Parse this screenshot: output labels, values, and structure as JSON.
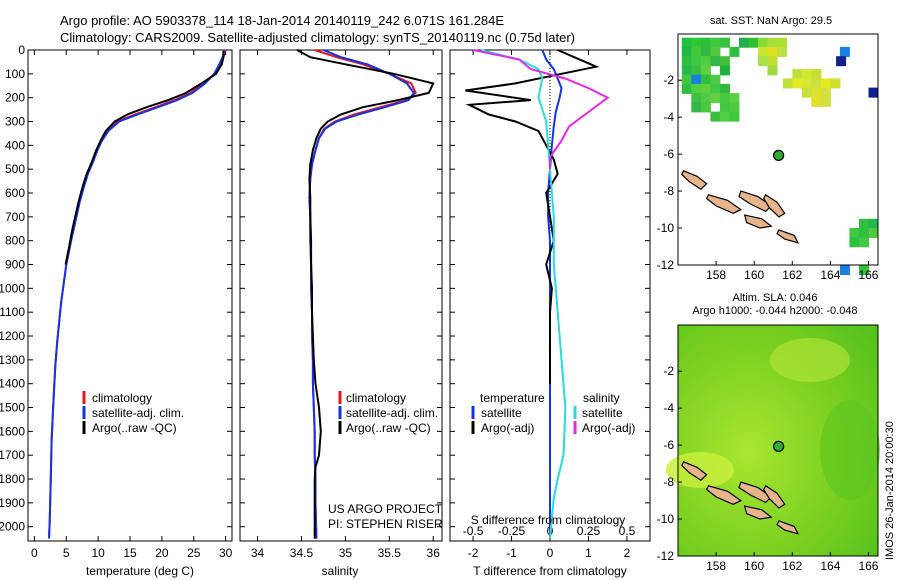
{
  "header": {
    "line1": "Argo profile: AO 5903378_114 18-Jan-2014 20140119_242 6.071S 161.284E",
    "line2": "Climatology: CARS2009. Satellite-adjusted climatology: synTS_20140119.nc (0.75d later)"
  },
  "credits": {
    "line1": "US ARGO PROJECT",
    "line2": "PI: STEPHEN RISER"
  },
  "imos_stamp": "IMOS 26-Jan-2014 20:00:30",
  "colors": {
    "climatology": "#e8141e",
    "satellite": "#1432e6",
    "argo": "#000000",
    "sal_satellite": "#28dcdc",
    "sal_argo": "#e628e6"
  },
  "chart_data": [
    {
      "id": "temperature",
      "type": "line",
      "xlabel": "temperature (deg C)",
      "ylabel": "",
      "xlim": [
        -1,
        31
      ],
      "ylim": [
        2060,
        0
      ],
      "y_reversed": true,
      "xticks": [
        0,
        5,
        10,
        15,
        20,
        25,
        30
      ],
      "xtick_labels": [
        "0",
        "5",
        "10",
        "15",
        "20",
        "25",
        "30"
      ],
      "yticks": [
        0,
        100,
        200,
        300,
        400,
        500,
        600,
        700,
        800,
        900,
        1000,
        1100,
        1200,
        1300,
        1400,
        1500,
        1600,
        1700,
        1800,
        1900,
        2000
      ],
      "ytick_labels": [
        "0",
        "100",
        "200",
        "300",
        "400",
        "500",
        "600",
        "700",
        "800",
        "900",
        "1000",
        "1100",
        "1200",
        "1300",
        "1400",
        "1500",
        "1600",
        "1700",
        "1800",
        "1900",
        "2000"
      ],
      "legend": [
        "climatology",
        "satellite-adj. clim.",
        "Argo(..raw -QC)"
      ],
      "series": [
        {
          "name": "climatology",
          "color": "#e8141e",
          "x": [
            29.9,
            29.7,
            29.2,
            28.3,
            26.5,
            24.5,
            22.0,
            19.0,
            15.8,
            13.0,
            11.4,
            10.5,
            9.8,
            9.1,
            8.3,
            7.6,
            7.0,
            6.5,
            6.0,
            5.6,
            5.0,
            4.6,
            4.2,
            3.9,
            3.6,
            3.3,
            3.1,
            2.9,
            2.7,
            2.6,
            2.5,
            2.4,
            2.3
          ],
          "y": [
            0,
            25,
            60,
            100,
            140,
            180,
            210,
            240,
            270,
            300,
            340,
            380,
            420,
            470,
            520,
            580,
            640,
            700,
            760,
            820,
            900,
            980,
            1060,
            1140,
            1220,
            1320,
            1420,
            1520,
            1640,
            1760,
            1880,
            1980,
            2050
          ]
        },
        {
          "name": "satellite-adj. clim.",
          "color": "#1432e6",
          "x": [
            29.8,
            29.6,
            29.0,
            28.2,
            26.8,
            24.8,
            22.4,
            19.4,
            16.2,
            13.3,
            11.6,
            10.6,
            9.9,
            9.2,
            8.4,
            7.7,
            7.1,
            6.6,
            6.1,
            5.6,
            5.0,
            4.6,
            4.2,
            3.9,
            3.6,
            3.3,
            3.1,
            2.9,
            2.7,
            2.6,
            2.5,
            2.4,
            2.3
          ],
          "y": [
            0,
            25,
            60,
            100,
            140,
            180,
            210,
            240,
            270,
            300,
            340,
            380,
            420,
            470,
            520,
            580,
            640,
            700,
            760,
            820,
            900,
            980,
            1060,
            1140,
            1220,
            1320,
            1420,
            1520,
            1640,
            1760,
            1880,
            1980,
            2050
          ]
        },
        {
          "name": "Argo(..raw -QC)",
          "color": "#000000",
          "x": [
            29.6,
            29.7,
            29.4,
            28.5,
            26.2,
            23.8,
            21.0,
            17.6,
            14.6,
            12.6,
            11.2,
            10.4,
            9.7,
            9.0,
            8.2,
            7.5,
            6.9,
            6.4,
            5.9,
            5.5,
            4.9
          ],
          "y": [
            5,
            25,
            60,
            100,
            140,
            180,
            210,
            240,
            270,
            300,
            340,
            380,
            420,
            470,
            520,
            580,
            640,
            700,
            760,
            820,
            900
          ]
        }
      ]
    },
    {
      "id": "salinity",
      "type": "line",
      "xlabel": "salinity",
      "xlim": [
        33.8,
        36.1
      ],
      "ylim": [
        2060,
        0
      ],
      "y_reversed": true,
      "xticks": [
        34,
        34.5,
        35,
        35.5,
        36
      ],
      "xtick_labels": [
        "34",
        "34.5",
        "35",
        "35.5",
        "36"
      ],
      "legend": [
        "climatology",
        "satellite-adj. clim.",
        "Argo(..raw -QC)"
      ],
      "series": [
        {
          "name": "climatology",
          "color": "#e8141e",
          "x": [
            34.65,
            34.9,
            35.2,
            35.5,
            35.75,
            35.8,
            35.7,
            35.4,
            35.1,
            34.88,
            34.76,
            34.7,
            34.66,
            34.62,
            34.6,
            34.59,
            34.6,
            34.6,
            34.61,
            34.61,
            34.62,
            34.62,
            34.63,
            34.63,
            34.64,
            34.65,
            34.65,
            34.66,
            34.66,
            34.67
          ],
          "y": [
            0,
            30,
            60,
            100,
            140,
            180,
            210,
            240,
            270,
            300,
            330,
            370,
            420,
            480,
            540,
            620,
            700,
            800,
            900,
            1000,
            1100,
            1200,
            1300,
            1400,
            1500,
            1600,
            1700,
            1800,
            1900,
            2050
          ]
        },
        {
          "name": "satellite-adj. clim.",
          "color": "#1432e6",
          "x": [
            34.75,
            34.95,
            35.25,
            35.5,
            35.7,
            35.78,
            35.72,
            35.45,
            35.15,
            34.9,
            34.77,
            34.7,
            34.66,
            34.62,
            34.6,
            34.59,
            34.6,
            34.6,
            34.61,
            34.61,
            34.62,
            34.62,
            34.63,
            34.63,
            34.64,
            34.65,
            34.65,
            34.66,
            34.66,
            34.67
          ],
          "y": [
            0,
            30,
            60,
            100,
            140,
            180,
            210,
            240,
            270,
            300,
            330,
            370,
            420,
            480,
            540,
            620,
            700,
            800,
            900,
            1000,
            1100,
            1200,
            1300,
            1400,
            1500,
            1600,
            1700,
            1800,
            1900,
            2050
          ]
        },
        {
          "name": "Argo(..raw -QC)",
          "color": "#000000",
          "x": [
            34.45,
            34.6,
            35.0,
            35.55,
            36.0,
            35.95,
            35.6,
            35.2,
            34.95,
            34.8,
            34.72,
            34.67,
            34.63,
            34.6,
            34.59,
            34.6,
            34.6,
            34.61,
            34.61,
            34.62,
            34.62,
            34.63,
            34.64,
            34.66,
            34.7,
            34.72,
            34.7,
            34.66,
            34.65,
            34.65
          ],
          "y": [
            0,
            30,
            60,
            100,
            140,
            180,
            210,
            240,
            270,
            300,
            330,
            370,
            420,
            480,
            540,
            620,
            700,
            800,
            900,
            1000,
            1100,
            1200,
            1300,
            1400,
            1500,
            1600,
            1700,
            1750,
            1800,
            2050
          ]
        }
      ]
    },
    {
      "id": "difference",
      "type": "line",
      "xlabel": "T difference from climatology",
      "xlabel_top": "S difference from climatology",
      "xlim": [
        -2.6,
        2.6
      ],
      "ylim": [
        2060,
        0
      ],
      "y_reversed": true,
      "xticks": [
        -2,
        -1,
        0,
        1,
        2
      ],
      "xtick_labels": [
        "-2",
        "-1",
        "0",
        "1",
        "2"
      ],
      "xticks_top": [
        -2,
        -1,
        0,
        1,
        2
      ],
      "xtick_labels_top": [
        "-0.5",
        "-0.25",
        "0",
        "0.25",
        "0.5"
      ],
      "legend_temperature_title": "temperature",
      "legend_temperature": [
        "satellite",
        "Argo(-adj)"
      ],
      "legend_salinity_title": "salinity",
      "legend_salinity": [
        "satellite",
        "Argo(-adj)"
      ],
      "series": [
        {
          "name": "temperature satellite",
          "color": "#1432e6",
          "x": [
            -0.2,
            -0.1,
            0.1,
            0.2,
            0.3,
            0.25,
            0.15,
            0.1,
            0.05,
            0.0,
            -0.05,
            -0.05,
            0.0,
            0.0,
            0.0,
            0.0,
            0.0,
            0.0,
            0.0
          ],
          "y": [
            0,
            40,
            80,
            120,
            160,
            200,
            260,
            320,
            400,
            500,
            600,
            700,
            800,
            1000,
            1200,
            1400,
            1600,
            1800,
            2050
          ]
        },
        {
          "name": "temperature Argo(-adj)",
          "color": "#000000",
          "x": [
            0.2,
            1.2,
            0.3,
            -0.9,
            -2.2,
            -0.5,
            -2.1,
            -1.6,
            -0.9,
            -0.3,
            -0.1,
            0.1,
            0.2,
            -0.1,
            0.0,
            0.1,
            -0.1,
            0.05,
            0.0,
            0.0
          ],
          "y": [
            0,
            70,
            100,
            140,
            170,
            210,
            230,
            270,
            300,
            340,
            400,
            460,
            520,
            600,
            700,
            800,
            900,
            1000,
            1100,
            1400
          ]
        },
        {
          "name": "salinity satellite",
          "color": "#28dcdc",
          "x": [
            -1.8,
            -0.8,
            -0.3,
            -0.2,
            -0.3,
            -0.1,
            0.0,
            0.1,
            0.1,
            0.2,
            0.3,
            0.4,
            0.35,
            0.2,
            0.1,
            0.05,
            0.0
          ],
          "y": [
            0,
            40,
            80,
            120,
            200,
            300,
            500,
            700,
            900,
            1100,
            1300,
            1500,
            1700,
            1800,
            1880,
            1960,
            2050
          ]
        },
        {
          "name": "salinity Argo(-adj)",
          "color": "#e628e6",
          "x": [
            -2.0,
            -0.8,
            -0.5,
            0.4,
            1.0,
            1.5,
            1.0,
            0.5,
            0.3,
            0.0,
            0.0
          ],
          "y": [
            0,
            40,
            80,
            120,
            160,
            200,
            260,
            320,
            380,
            450,
            500
          ]
        }
      ]
    },
    {
      "id": "sst_map",
      "type": "heatmap",
      "title": "sat. SST: NaN Argo: 29.5",
      "xlabel": "",
      "ylabel": "",
      "xlim": [
        156,
        166.5
      ],
      "ylim": [
        -12,
        0.5
      ],
      "xticks": [
        158,
        160,
        162,
        164,
        166
      ],
      "xtick_labels": [
        "158",
        "160",
        "162",
        "164",
        "166"
      ],
      "yticks": [
        -2,
        -4,
        -6,
        -8,
        -10,
        -12
      ],
      "ytick_labels": [
        "-2",
        "-4",
        "-6",
        "-8",
        "-10",
        "-12"
      ],
      "argo_position": {
        "lon": 161.284,
        "lat": -6.071
      }
    },
    {
      "id": "sla_map",
      "type": "heatmap",
      "title": "Altim. SLA: 0.046",
      "subtitle": "Argo h1000: -0.044 h2000: -0.048",
      "xlim": [
        156,
        166.5
      ],
      "ylim": [
        -12,
        0.5
      ],
      "xticks": [
        158,
        160,
        162,
        164,
        166
      ],
      "xtick_labels": [
        "158",
        "160",
        "162",
        "164",
        "166"
      ],
      "yticks": [
        -2,
        -4,
        -6,
        -8,
        -10,
        -12
      ],
      "ytick_labels": [
        "-2",
        "-4",
        "-6",
        "-8",
        "-10",
        "-12"
      ],
      "argo_position": {
        "lon": 161.284,
        "lat": -6.071
      }
    }
  ]
}
